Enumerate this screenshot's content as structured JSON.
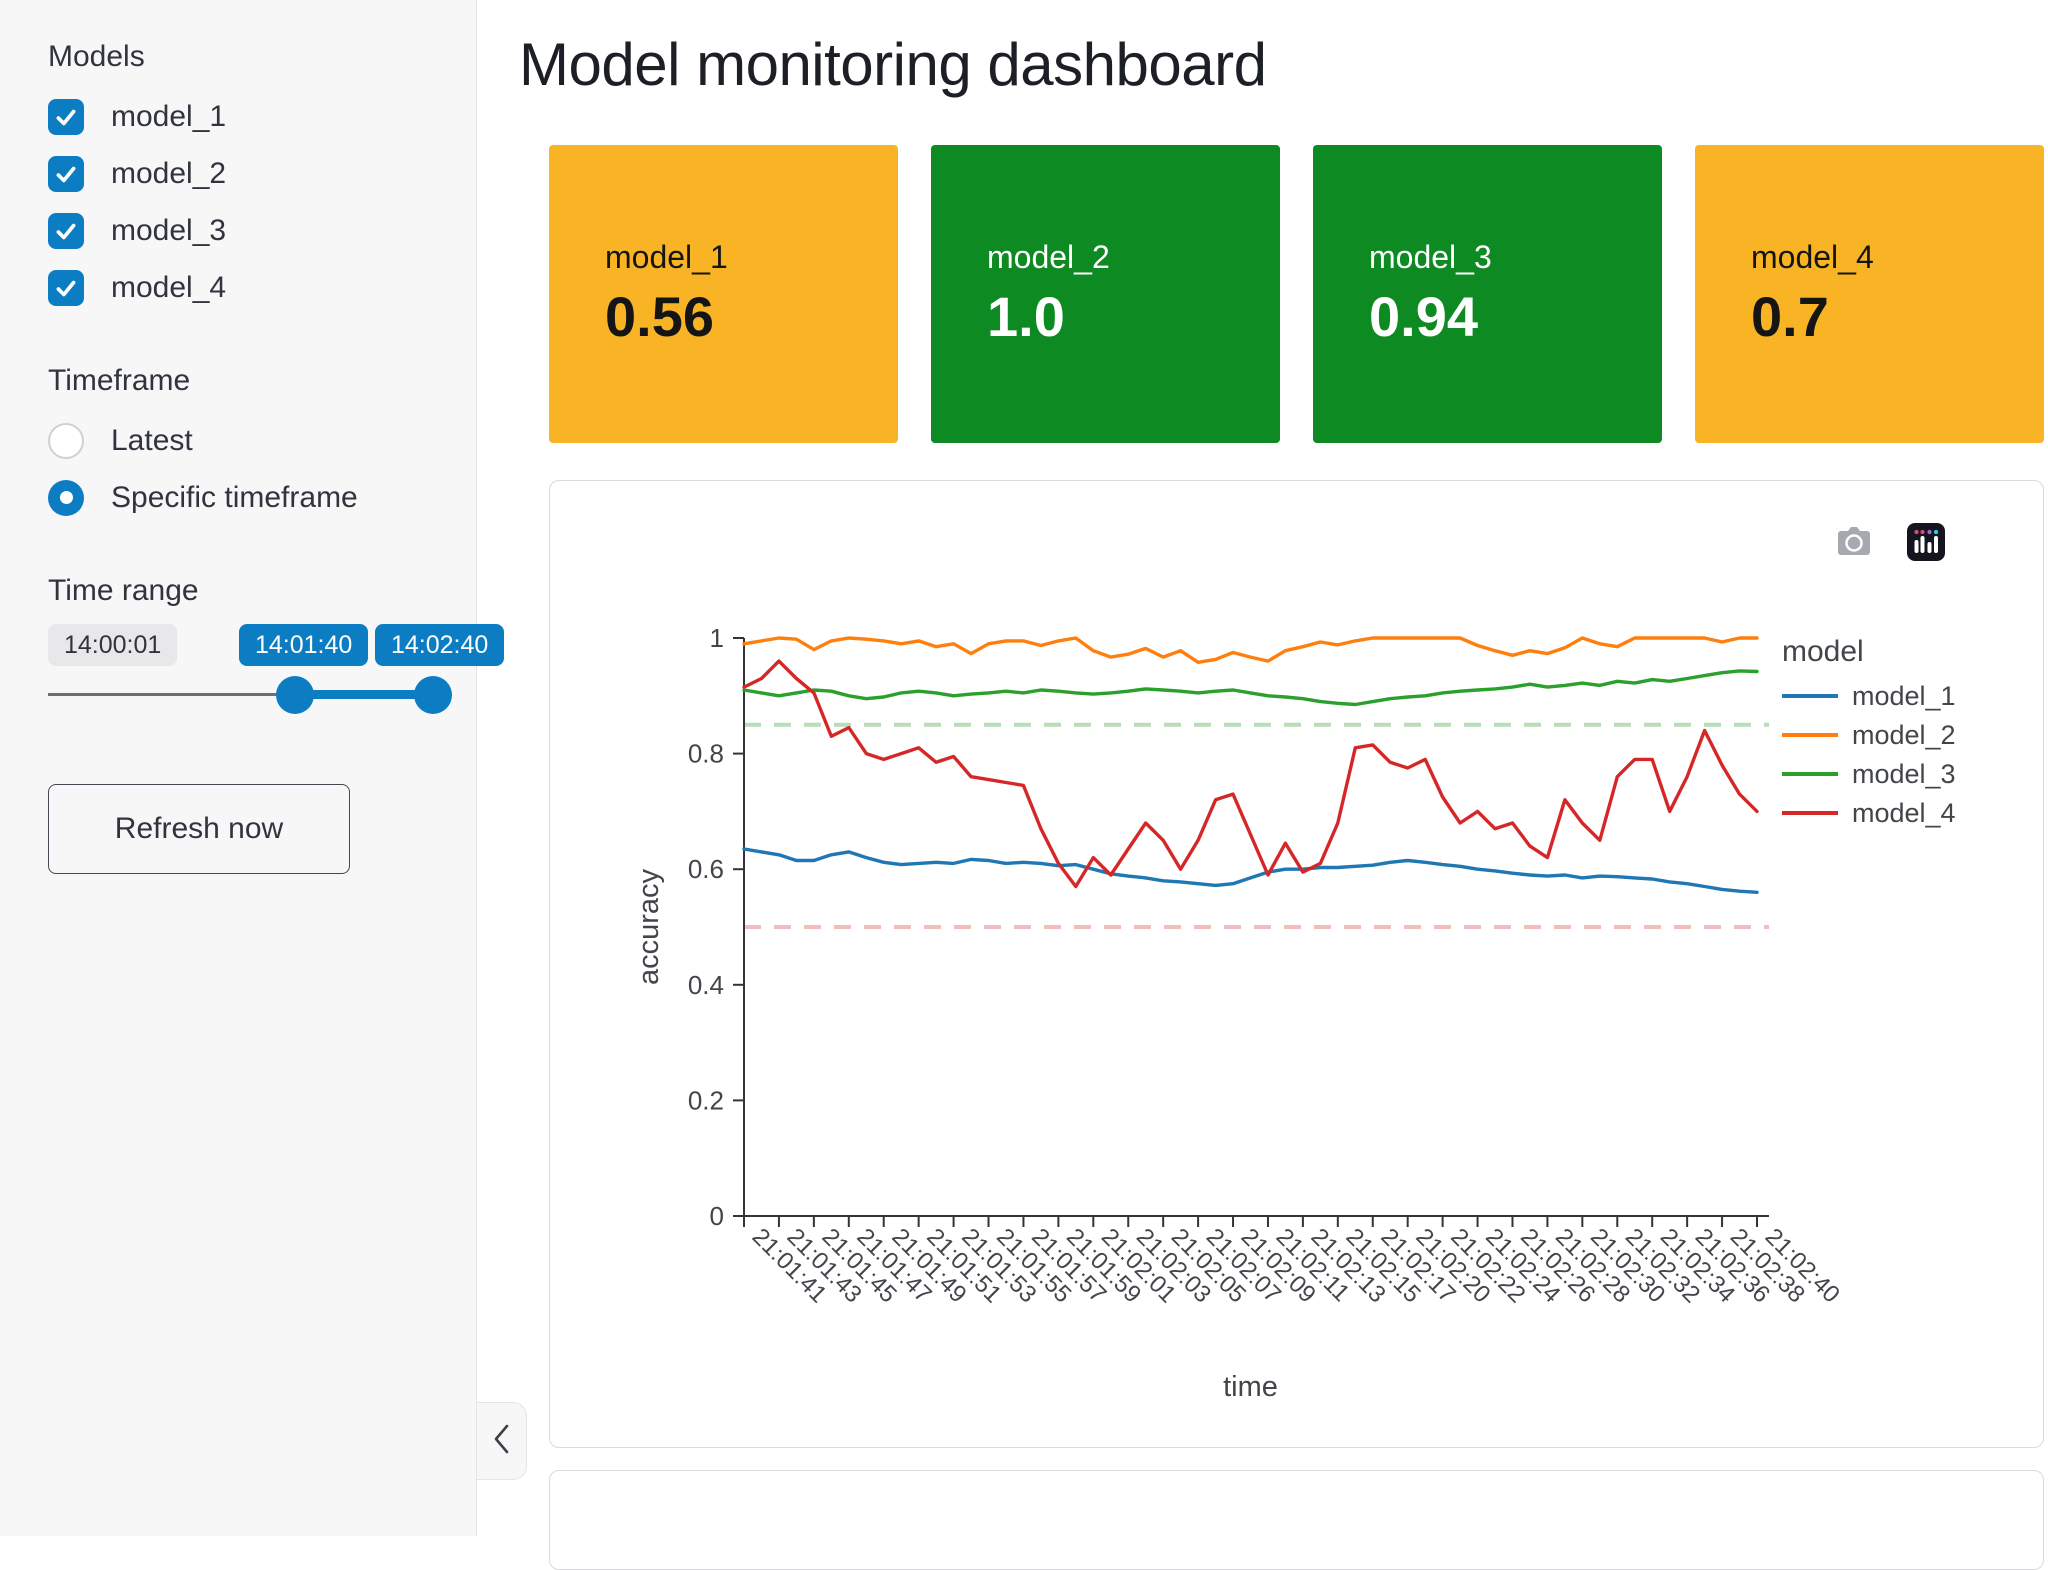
{
  "accent_color": "#0d7dc3",
  "sidebar": {
    "models_label": "Models",
    "models": [
      {
        "label": "model_1",
        "checked": true
      },
      {
        "label": "model_2",
        "checked": true
      },
      {
        "label": "model_3",
        "checked": true
      },
      {
        "label": "model_4",
        "checked": true
      }
    ],
    "timeframe_label": "Timeframe",
    "timeframe_options": [
      {
        "label": "Latest",
        "selected": false
      },
      {
        "label": "Specific timeframe",
        "selected": true
      }
    ],
    "time_range_label": "Time range",
    "slider": {
      "min_label": "14:00:01",
      "start_value": "14:01:40",
      "end_value": "14:02:40"
    },
    "refresh_button_label": "Refresh now",
    "collapse_icon": "chevron-left"
  },
  "header": {
    "title": "Model monitoring dashboard"
  },
  "metric_cards": [
    {
      "label": "model_1",
      "value": "0.56",
      "bg": "#f8b425",
      "text_color": "#151515"
    },
    {
      "label": "model_2",
      "value": "1.0",
      "bg": "#0d8a21",
      "text_color": "#ffffff"
    },
    {
      "label": "model_3",
      "value": "0.94",
      "bg": "#0d8a21",
      "text_color": "#ffffff"
    },
    {
      "label": "model_4",
      "value": "0.7",
      "bg": "#f8b425",
      "text_color": "#151515"
    }
  ],
  "modebar": {
    "icons": [
      "camera-icon",
      "plotly-logo-icon"
    ]
  },
  "chart_data": {
    "type": "line",
    "title": "",
    "xlabel": "time",
    "ylabel": "accuracy",
    "ylim": [
      0,
      1
    ],
    "yticks": [
      0,
      0.2,
      0.4,
      0.6,
      0.8,
      1
    ],
    "legend_title": "model",
    "legend_position": "right",
    "grid": false,
    "x_tick_every": 2,
    "x_tick_angle": 45,
    "thresholds": [
      {
        "value": 0.85,
        "color": "#b9dcb9",
        "style": "dashed"
      },
      {
        "value": 0.5,
        "color": "#f2bdbd",
        "style": "dashed"
      }
    ],
    "categories": [
      "21:01:41",
      "21:01:42",
      "21:01:43",
      "21:01:44",
      "21:01:45",
      "21:01:46",
      "21:01:47",
      "21:01:48",
      "21:01:49",
      "21:01:50",
      "21:01:51",
      "21:01:52",
      "21:01:53",
      "21:01:54",
      "21:01:55",
      "21:01:56",
      "21:01:57",
      "21:01:58",
      "21:01:59",
      "21:02:00",
      "21:02:01",
      "21:02:02",
      "21:02:03",
      "21:02:04",
      "21:02:05",
      "21:02:06",
      "21:02:07",
      "21:02:08",
      "21:02:09",
      "21:02:10",
      "21:02:11",
      "21:02:12",
      "21:02:13",
      "21:02:14",
      "21:02:15",
      "21:02:16",
      "21:02:17",
      "21:02:19",
      "21:02:20",
      "21:02:21",
      "21:02:22",
      "21:02:23",
      "21:02:24",
      "21:02:25",
      "21:02:26",
      "21:02:27",
      "21:02:28",
      "21:02:29",
      "21:02:30",
      "21:02:31",
      "21:02:32",
      "21:02:33",
      "21:02:34",
      "21:02:35",
      "21:02:36",
      "21:02:37",
      "21:02:38",
      "21:02:39",
      "21:02:40"
    ],
    "series": [
      {
        "name": "model_1",
        "color": "#1f77b4",
        "values": [
          0.635,
          0.63,
          0.625,
          0.615,
          0.615,
          0.625,
          0.63,
          0.62,
          0.612,
          0.608,
          0.61,
          0.612,
          0.61,
          0.617,
          0.615,
          0.61,
          0.612,
          0.61,
          0.606,
          0.608,
          0.6,
          0.592,
          0.588,
          0.585,
          0.58,
          0.578,
          0.575,
          0.572,
          0.575,
          0.585,
          0.595,
          0.6,
          0.6,
          0.603,
          0.603,
          0.605,
          0.607,
          0.612,
          0.615,
          0.612,
          0.608,
          0.605,
          0.6,
          0.597,
          0.593,
          0.59,
          0.588,
          0.59,
          0.585,
          0.588,
          0.587,
          0.585,
          0.583,
          0.578,
          0.575,
          0.57,
          0.565,
          0.562,
          0.56
        ]
      },
      {
        "name": "model_2",
        "color": "#ff7f0e",
        "values": [
          0.99,
          0.995,
          1.0,
          0.998,
          0.98,
          0.995,
          1.0,
          0.998,
          0.995,
          0.99,
          0.995,
          0.985,
          0.99,
          0.973,
          0.99,
          0.995,
          0.995,
          0.987,
          0.995,
          1.0,
          0.978,
          0.967,
          0.972,
          0.982,
          0.967,
          0.978,
          0.958,
          0.963,
          0.975,
          0.967,
          0.96,
          0.978,
          0.985,
          0.993,
          0.988,
          0.995,
          1.0,
          1.0,
          1.0,
          1.0,
          1.0,
          1.0,
          0.987,
          0.978,
          0.97,
          0.978,
          0.973,
          0.983,
          1.0,
          0.99,
          0.985,
          1.0,
          1.0,
          1.0,
          1.0,
          1.0,
          0.993,
          1.0,
          1.0
        ]
      },
      {
        "name": "model_3",
        "color": "#2ca02c",
        "values": [
          0.91,
          0.905,
          0.9,
          0.905,
          0.91,
          0.908,
          0.9,
          0.895,
          0.898,
          0.905,
          0.908,
          0.905,
          0.9,
          0.903,
          0.905,
          0.908,
          0.905,
          0.91,
          0.908,
          0.905,
          0.903,
          0.905,
          0.908,
          0.912,
          0.91,
          0.908,
          0.905,
          0.908,
          0.91,
          0.905,
          0.9,
          0.898,
          0.895,
          0.89,
          0.887,
          0.885,
          0.89,
          0.895,
          0.898,
          0.9,
          0.905,
          0.908,
          0.91,
          0.912,
          0.915,
          0.92,
          0.915,
          0.918,
          0.922,
          0.918,
          0.925,
          0.922,
          0.928,
          0.925,
          0.93,
          0.935,
          0.94,
          0.943,
          0.942
        ]
      },
      {
        "name": "model_4",
        "color": "#d62728",
        "values": [
          0.915,
          0.93,
          0.96,
          0.93,
          0.905,
          0.83,
          0.845,
          0.8,
          0.79,
          0.8,
          0.81,
          0.785,
          0.795,
          0.76,
          0.755,
          0.75,
          0.745,
          0.67,
          0.61,
          0.57,
          0.62,
          0.59,
          0.635,
          0.68,
          0.65,
          0.6,
          0.65,
          0.72,
          0.73,
          0.66,
          0.59,
          0.645,
          0.595,
          0.61,
          0.68,
          0.81,
          0.815,
          0.785,
          0.775,
          0.79,
          0.725,
          0.68,
          0.7,
          0.67,
          0.68,
          0.64,
          0.62,
          0.72,
          0.68,
          0.65,
          0.76,
          0.79,
          0.79,
          0.7,
          0.76,
          0.84,
          0.78,
          0.73,
          0.7
        ]
      }
    ]
  }
}
